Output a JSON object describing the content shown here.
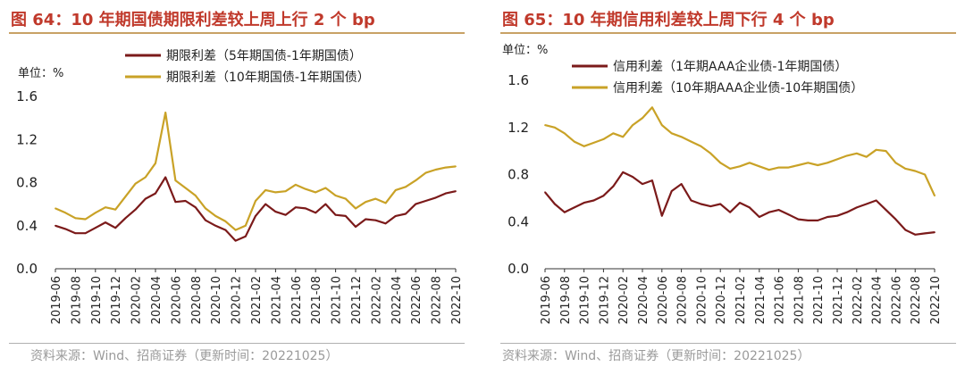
{
  "left": {
    "title": "图 64：10 年期国债期限利差较上周上行 2 个 bp",
    "source": "资料来源：Wind、招商证券（更新时间：20221025）",
    "chart_data": {
      "type": "line",
      "unit_label": "单位：%",
      "ylim": [
        0,
        1.6
      ],
      "yticks": [
        0.0,
        0.4,
        0.8,
        1.2,
        1.6
      ],
      "ytick_labels": [
        "0.0",
        "0.4",
        "0.8",
        "1.2",
        "1.6"
      ],
      "categories": [
        "2019-06",
        "2019-07",
        "2019-08",
        "2019-09",
        "2019-10",
        "2019-11",
        "2019-12",
        "2020-01",
        "2020-02",
        "2020-03",
        "2020-04",
        "2020-05",
        "2020-06",
        "2020-07",
        "2020-08",
        "2020-09",
        "2020-10",
        "2020-11",
        "2020-12",
        "2021-01",
        "2021-02",
        "2021-03",
        "2021-04",
        "2021-05",
        "2021-06",
        "2021-07",
        "2021-08",
        "2021-09",
        "2021-10",
        "2021-11",
        "2021-12",
        "2022-01",
        "2022-02",
        "2022-03",
        "2022-04",
        "2022-05",
        "2022-06",
        "2022-07",
        "2022-08",
        "2022-09",
        "2022-10"
      ],
      "xtick_labels": [
        "2019-06",
        "2019-08",
        "2019-10",
        "2019-12",
        "2020-02",
        "2020-04",
        "2020-06",
        "2020-08",
        "2020-10",
        "2020-12",
        "2021-02",
        "2021-04",
        "2021-06",
        "2021-08",
        "2021-10",
        "2021-12",
        "2022-02",
        "2022-04",
        "2022-06",
        "2022-08",
        "2022-10"
      ],
      "series": [
        {
          "name": "期限利差（5年期国债-1年期国债）",
          "color": "#7b1a1a",
          "values": [
            0.4,
            0.37,
            0.33,
            0.33,
            0.38,
            0.43,
            0.38,
            0.47,
            0.55,
            0.65,
            0.7,
            0.85,
            0.62,
            0.63,
            0.57,
            0.45,
            0.4,
            0.36,
            0.26,
            0.3,
            0.49,
            0.6,
            0.53,
            0.5,
            0.57,
            0.56,
            0.52,
            0.6,
            0.5,
            0.49,
            0.39,
            0.46,
            0.45,
            0.42,
            0.49,
            0.51,
            0.6,
            0.63,
            0.66,
            0.7,
            0.72
          ]
        },
        {
          "name": "期限利差（10年期国债-1年期国债）",
          "color": "#c9a227",
          "values": [
            0.56,
            0.52,
            0.47,
            0.46,
            0.52,
            0.57,
            0.55,
            0.67,
            0.79,
            0.85,
            0.98,
            1.45,
            0.82,
            0.75,
            0.68,
            0.56,
            0.49,
            0.44,
            0.36,
            0.4,
            0.63,
            0.73,
            0.71,
            0.72,
            0.78,
            0.74,
            0.71,
            0.75,
            0.68,
            0.65,
            0.56,
            0.62,
            0.65,
            0.61,
            0.73,
            0.76,
            0.82,
            0.89,
            0.92,
            0.94,
            0.95
          ]
        }
      ]
    }
  },
  "right": {
    "title": "图 65：10 年期信用利差较上周下行 4 个 bp",
    "source": "资料来源：Wind、招商证券（更新时间：20221025）",
    "chart_data": {
      "type": "line",
      "unit_label": "单位：%",
      "ylim": [
        0,
        1.6
      ],
      "yticks": [
        0.0,
        0.4,
        0.8,
        1.2,
        1.6
      ],
      "ytick_labels": [
        "0.0",
        "0.4",
        "0.8",
        "1.2",
        "1.6"
      ],
      "categories": [
        "2019-06",
        "2019-07",
        "2019-08",
        "2019-09",
        "2019-10",
        "2019-11",
        "2019-12",
        "2020-01",
        "2020-02",
        "2020-03",
        "2020-04",
        "2020-05",
        "2020-06",
        "2020-07",
        "2020-08",
        "2020-09",
        "2020-10",
        "2020-11",
        "2020-12",
        "2021-01",
        "2021-02",
        "2021-03",
        "2021-04",
        "2021-05",
        "2021-06",
        "2021-07",
        "2021-08",
        "2021-09",
        "2021-10",
        "2021-11",
        "2021-12",
        "2022-01",
        "2022-02",
        "2022-03",
        "2022-04",
        "2022-05",
        "2022-06",
        "2022-07",
        "2022-08",
        "2022-09",
        "2022-10"
      ],
      "xtick_labels": [
        "2019-06",
        "2019-08",
        "2019-10",
        "2019-12",
        "2020-02",
        "2020-04",
        "2020-06",
        "2020-08",
        "2020-10",
        "2020-12",
        "2021-02",
        "2021-04",
        "2021-06",
        "2021-08",
        "2021-10",
        "2021-12",
        "2022-02",
        "2022-04",
        "2022-06",
        "2022-08",
        "2022-10"
      ],
      "series": [
        {
          "name": "信用利差（1年期AAA企业债-1年期国债）",
          "color": "#7b1a1a",
          "values": [
            0.65,
            0.55,
            0.48,
            0.52,
            0.56,
            0.58,
            0.62,
            0.7,
            0.82,
            0.78,
            0.72,
            0.75,
            0.45,
            0.66,
            0.72,
            0.58,
            0.55,
            0.53,
            0.55,
            0.48,
            0.56,
            0.52,
            0.44,
            0.48,
            0.5,
            0.46,
            0.42,
            0.41,
            0.41,
            0.44,
            0.45,
            0.48,
            0.52,
            0.55,
            0.58,
            0.5,
            0.42,
            0.33,
            0.29,
            0.3,
            0.31
          ]
        },
        {
          "name": "信用利差（10年期AAA企业债-10年期国债）",
          "color": "#c9a227",
          "values": [
            1.22,
            1.2,
            1.15,
            1.08,
            1.04,
            1.07,
            1.1,
            1.15,
            1.12,
            1.22,
            1.28,
            1.37,
            1.22,
            1.15,
            1.12,
            1.08,
            1.04,
            0.98,
            0.9,
            0.85,
            0.87,
            0.9,
            0.87,
            0.84,
            0.86,
            0.86,
            0.88,
            0.9,
            0.88,
            0.9,
            0.93,
            0.96,
            0.98,
            0.95,
            1.01,
            1.0,
            0.9,
            0.85,
            0.83,
            0.8,
            0.62
          ]
        }
      ]
    }
  }
}
